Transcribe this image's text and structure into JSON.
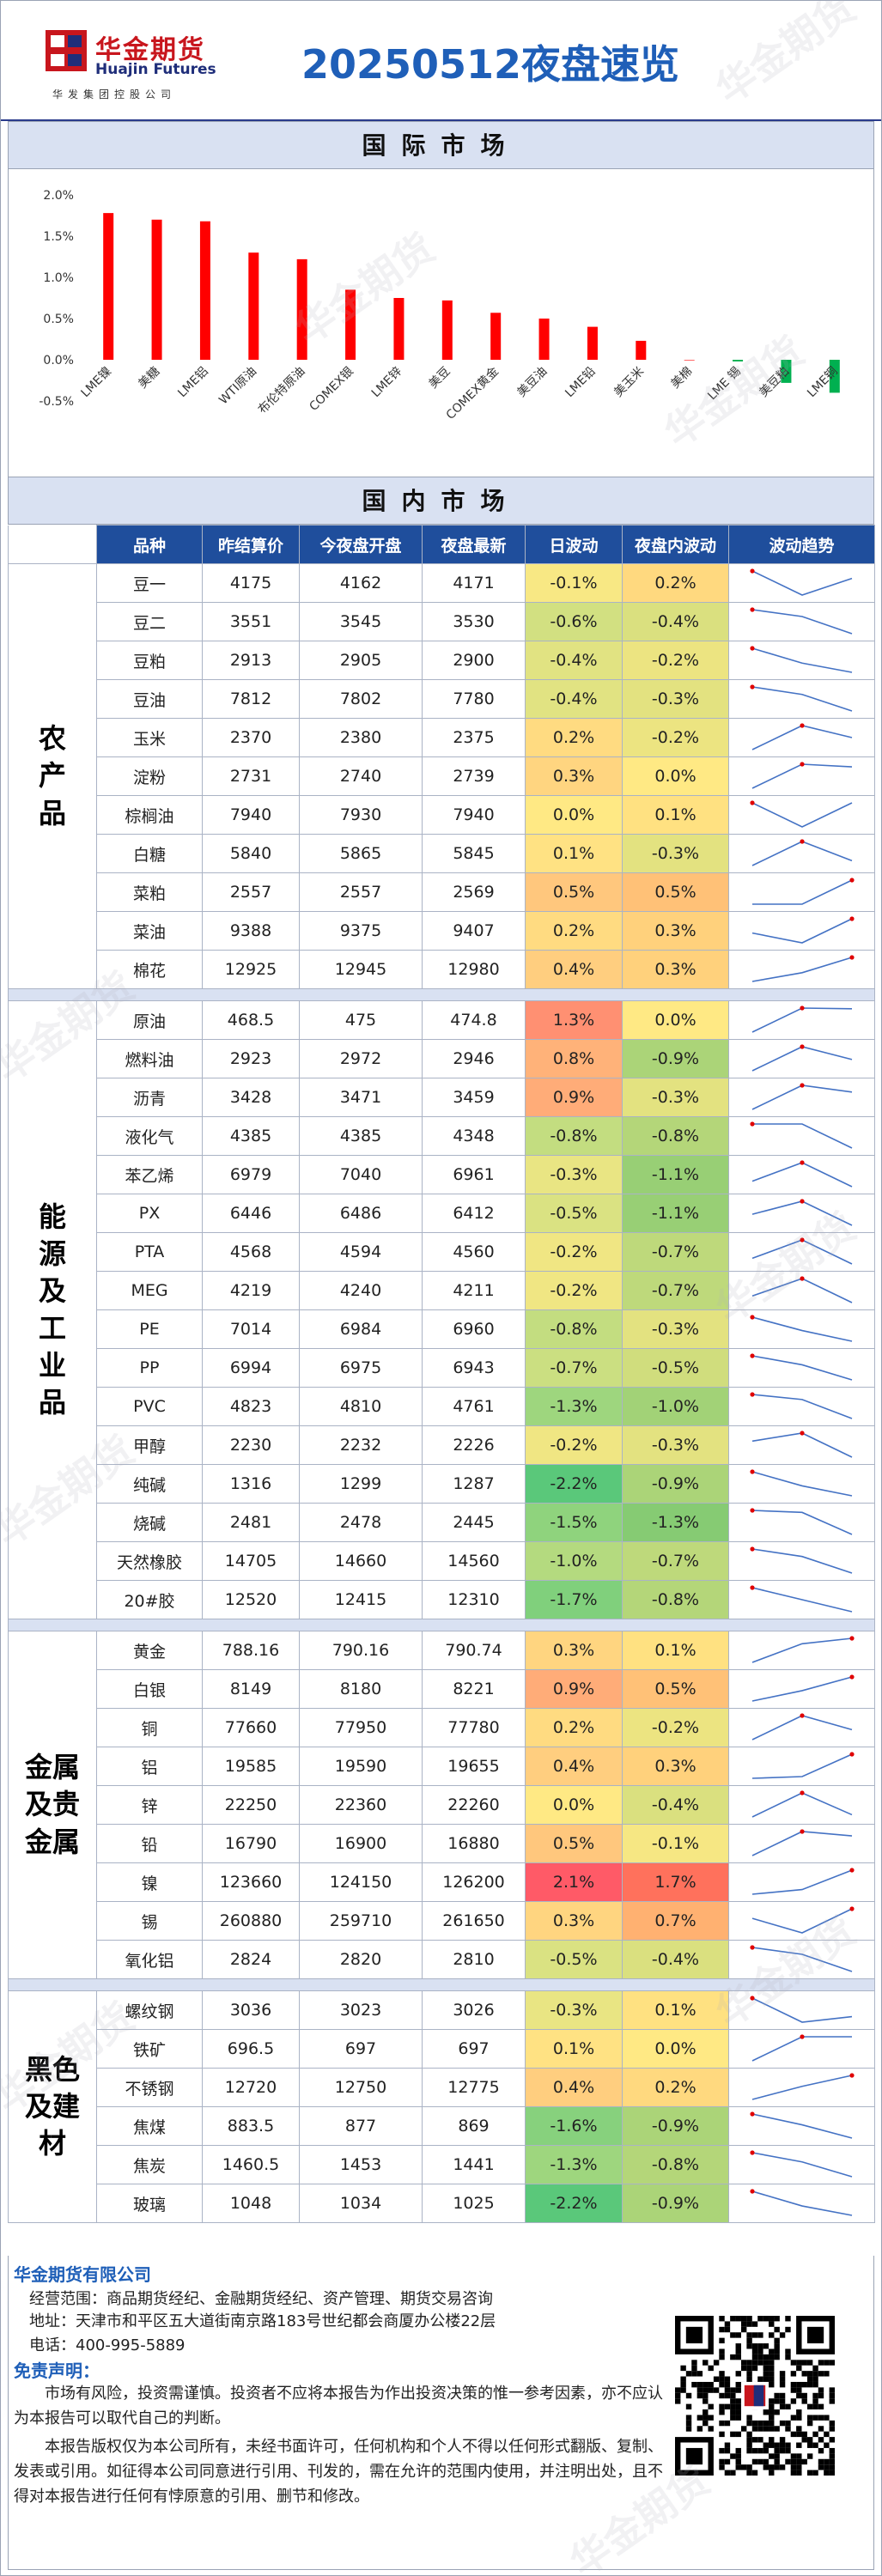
{
  "header": {
    "logo_cn": "华金期货",
    "logo_en": "Huajin Futures",
    "logo_sub": "华发集团控股公司",
    "title": "20250512夜盘速览",
    "watermark": "华金期货"
  },
  "intl_section": {
    "title": "国际市场"
  },
  "chart_data": {
    "type": "bar",
    "title": "",
    "categories": [
      "LME镍",
      "美糖",
      "LME铝",
      "WTI原油",
      "布伦特原油",
      "COMEX银",
      "LME锌",
      "美豆",
      "COMEX黄金",
      "美豆油",
      "LME铅",
      "美玉米",
      "美棉",
      "LME 锡",
      "美豆粕",
      "LME铜"
    ],
    "values": [
      1.78,
      1.7,
      1.68,
      1.3,
      1.22,
      0.85,
      0.75,
      0.72,
      0.57,
      0.5,
      0.4,
      0.23,
      0.0,
      -0.02,
      -0.28,
      -0.4
    ],
    "ylim": [
      -0.5,
      2.0
    ],
    "yticks": [
      "-0.5%",
      "0.0%",
      "0.5%",
      "1.0%",
      "1.5%",
      "2.0%"
    ],
    "colors": {
      "up": "#ff0000",
      "down": "#00b050"
    }
  },
  "dom_section": {
    "title": "国内市场"
  },
  "table": {
    "headers": [
      "品种",
      "昨结算价",
      "今夜盘开盘",
      "夜盘最新",
      "日波动",
      "夜盘内波动",
      "波动趋势"
    ],
    "groups": [
      {
        "name": "农\n产\n品",
        "rows": [
          [
            "豆一",
            "4175",
            "4162",
            "4171",
            "-0.1%",
            "0.2%"
          ],
          [
            "豆二",
            "3551",
            "3545",
            "3530",
            "-0.6%",
            "-0.4%"
          ],
          [
            "豆粕",
            "2913",
            "2905",
            "2900",
            "-0.4%",
            "-0.2%"
          ],
          [
            "豆油",
            "7812",
            "7802",
            "7780",
            "-0.4%",
            "-0.3%"
          ],
          [
            "玉米",
            "2370",
            "2380",
            "2375",
            "0.2%",
            "-0.2%"
          ],
          [
            "淀粉",
            "2731",
            "2740",
            "2739",
            "0.3%",
            "0.0%"
          ],
          [
            "棕榈油",
            "7940",
            "7930",
            "7940",
            "0.0%",
            "0.1%"
          ],
          [
            "白糖",
            "5840",
            "5865",
            "5845",
            "0.1%",
            "-0.3%"
          ],
          [
            "菜粕",
            "2557",
            "2557",
            "2569",
            "0.5%",
            "0.5%"
          ],
          [
            "菜油",
            "9388",
            "9375",
            "9407",
            "0.2%",
            "0.3%"
          ],
          [
            "棉花",
            "12925",
            "12945",
            "12980",
            "0.4%",
            "0.3%"
          ]
        ]
      },
      {
        "name": "能\n源\n及\n工\n业\n品",
        "rows": [
          [
            "原油",
            "468.5",
            "475",
            "474.8",
            "1.3%",
            "0.0%"
          ],
          [
            "燃料油",
            "2923",
            "2972",
            "2946",
            "0.8%",
            "-0.9%"
          ],
          [
            "沥青",
            "3428",
            "3471",
            "3459",
            "0.9%",
            "-0.3%"
          ],
          [
            "液化气",
            "4385",
            "4385",
            "4348",
            "-0.8%",
            "-0.8%"
          ],
          [
            "苯乙烯",
            "6979",
            "7040",
            "6961",
            "-0.3%",
            "-1.1%"
          ],
          [
            "PX",
            "6446",
            "6486",
            "6412",
            "-0.5%",
            "-1.1%"
          ],
          [
            "PTA",
            "4568",
            "4594",
            "4560",
            "-0.2%",
            "-0.7%"
          ],
          [
            "MEG",
            "4219",
            "4240",
            "4211",
            "-0.2%",
            "-0.7%"
          ],
          [
            "PE",
            "7014",
            "6984",
            "6960",
            "-0.8%",
            "-0.3%"
          ],
          [
            "PP",
            "6994",
            "6975",
            "6943",
            "-0.7%",
            "-0.5%"
          ],
          [
            "PVC",
            "4823",
            "4810",
            "4761",
            "-1.3%",
            "-1.0%"
          ],
          [
            "甲醇",
            "2230",
            "2232",
            "2226",
            "-0.2%",
            "-0.3%"
          ],
          [
            "纯碱",
            "1316",
            "1299",
            "1287",
            "-2.2%",
            "-0.9%"
          ],
          [
            "烧碱",
            "2481",
            "2478",
            "2445",
            "-1.5%",
            "-1.3%"
          ],
          [
            "天然橡胶",
            "14705",
            "14660",
            "14560",
            "-1.0%",
            "-0.7%"
          ],
          [
            "20#胶",
            "12520",
            "12415",
            "12310",
            "-1.7%",
            "-0.8%"
          ]
        ]
      },
      {
        "name": "金属\n及贵\n金属",
        "rows": [
          [
            "黄金",
            "788.16",
            "790.16",
            "790.74",
            "0.3%",
            "0.1%"
          ],
          [
            "白银",
            "8149",
            "8180",
            "8221",
            "0.9%",
            "0.5%"
          ],
          [
            "铜",
            "77660",
            "77950",
            "77780",
            "0.2%",
            "-0.2%"
          ],
          [
            "铝",
            "19585",
            "19590",
            "19655",
            "0.4%",
            "0.3%"
          ],
          [
            "锌",
            "22250",
            "22360",
            "22260",
            "0.0%",
            "-0.4%"
          ],
          [
            "铅",
            "16790",
            "16900",
            "16880",
            "0.5%",
            "-0.1%"
          ],
          [
            "镍",
            "123660",
            "124150",
            "126200",
            "2.1%",
            "1.7%"
          ],
          [
            "锡",
            "260880",
            "259710",
            "261650",
            "0.3%",
            "0.7%"
          ],
          [
            "氧化铝",
            "2824",
            "2820",
            "2810",
            "-0.5%",
            "-0.4%"
          ]
        ]
      },
      {
        "name": "黑色\n及建\n材",
        "rows": [
          [
            "螺纹钢",
            "3036",
            "3023",
            "3026",
            "-0.3%",
            "0.1%"
          ],
          [
            "铁矿",
            "696.5",
            "697",
            "697",
            "0.1%",
            "0.0%"
          ],
          [
            "不锈钢",
            "12720",
            "12750",
            "12775",
            "0.4%",
            "0.2%"
          ],
          [
            "焦煤",
            "883.5",
            "877",
            "869",
            "-1.6%",
            "-0.9%"
          ],
          [
            "焦炭",
            "1460.5",
            "1453",
            "1441",
            "-1.3%",
            "-0.8%"
          ],
          [
            "玻璃",
            "1048",
            "1034",
            "1025",
            "-2.2%",
            "-0.9%"
          ]
        ]
      }
    ]
  },
  "footer": {
    "company": "华金期货有限公司",
    "scope": "经营范围：商品期货经纪、金融期货经纪、资产管理、期货交易咨询",
    "address": "地址：天津市和平区五大道街南京路183号世纪都会商厦办公楼22层",
    "phone": "电话：400-995-5889",
    "disclaimer_title": "免责声明：",
    "disclaimer_1": "市场有风险，投资需谨慎。投资者不应将本报告为作出投资决策的惟一参考因素，亦不应认为本报告可以取代自己的判断。",
    "disclaimer_2": "本报告版权仅为本公司所有，未经书面许可，任何机构和个人不得以任何形式翻版、复制、发表或引用。如征得本公司同意进行引用、刊发的，需在允许的范围内使用，并注明出处，且不得对本报告进行任何有悖原意的引用、删节和修改。"
  }
}
